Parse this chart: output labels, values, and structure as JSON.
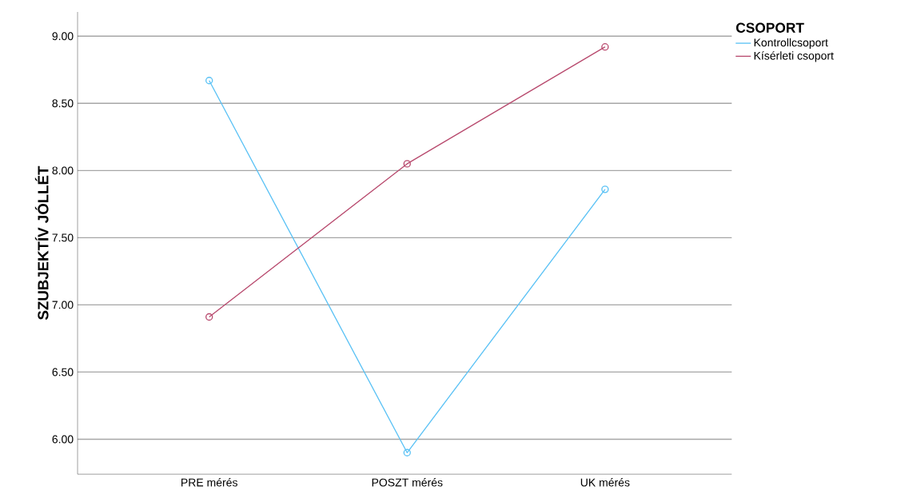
{
  "chart_data": {
    "type": "line",
    "ylabel": "SZUBJEKTÍV JÓLLÉT",
    "legend_title": "CSOPORT",
    "categories": [
      "PRE mérés",
      "POSZT mérés",
      "UK mérés"
    ],
    "series": [
      {
        "name": "Kontrollcsoport",
        "color": "#5bc2f5",
        "values": [
          8.67,
          5.9,
          7.86
        ]
      },
      {
        "name": "Kísérleti csoport",
        "color": "#b84a6e",
        "values": [
          6.91,
          8.05,
          8.92
        ]
      }
    ],
    "ylim": [
      5.74,
      9.18
    ],
    "yticks": [
      {
        "value": 6,
        "label": "6.00"
      },
      {
        "value": 6.5,
        "label": "6.50"
      },
      {
        "value": 7,
        "label": "7.00"
      },
      {
        "value": 7.5,
        "label": "7.50"
      },
      {
        "value": 8,
        "label": "8.00"
      },
      {
        "value": 8.5,
        "label": "8.50"
      },
      {
        "value": 9,
        "label": "9.00"
      }
    ],
    "grid": "y",
    "legend": "top right",
    "marker": "circle",
    "line_style": "solid"
  }
}
